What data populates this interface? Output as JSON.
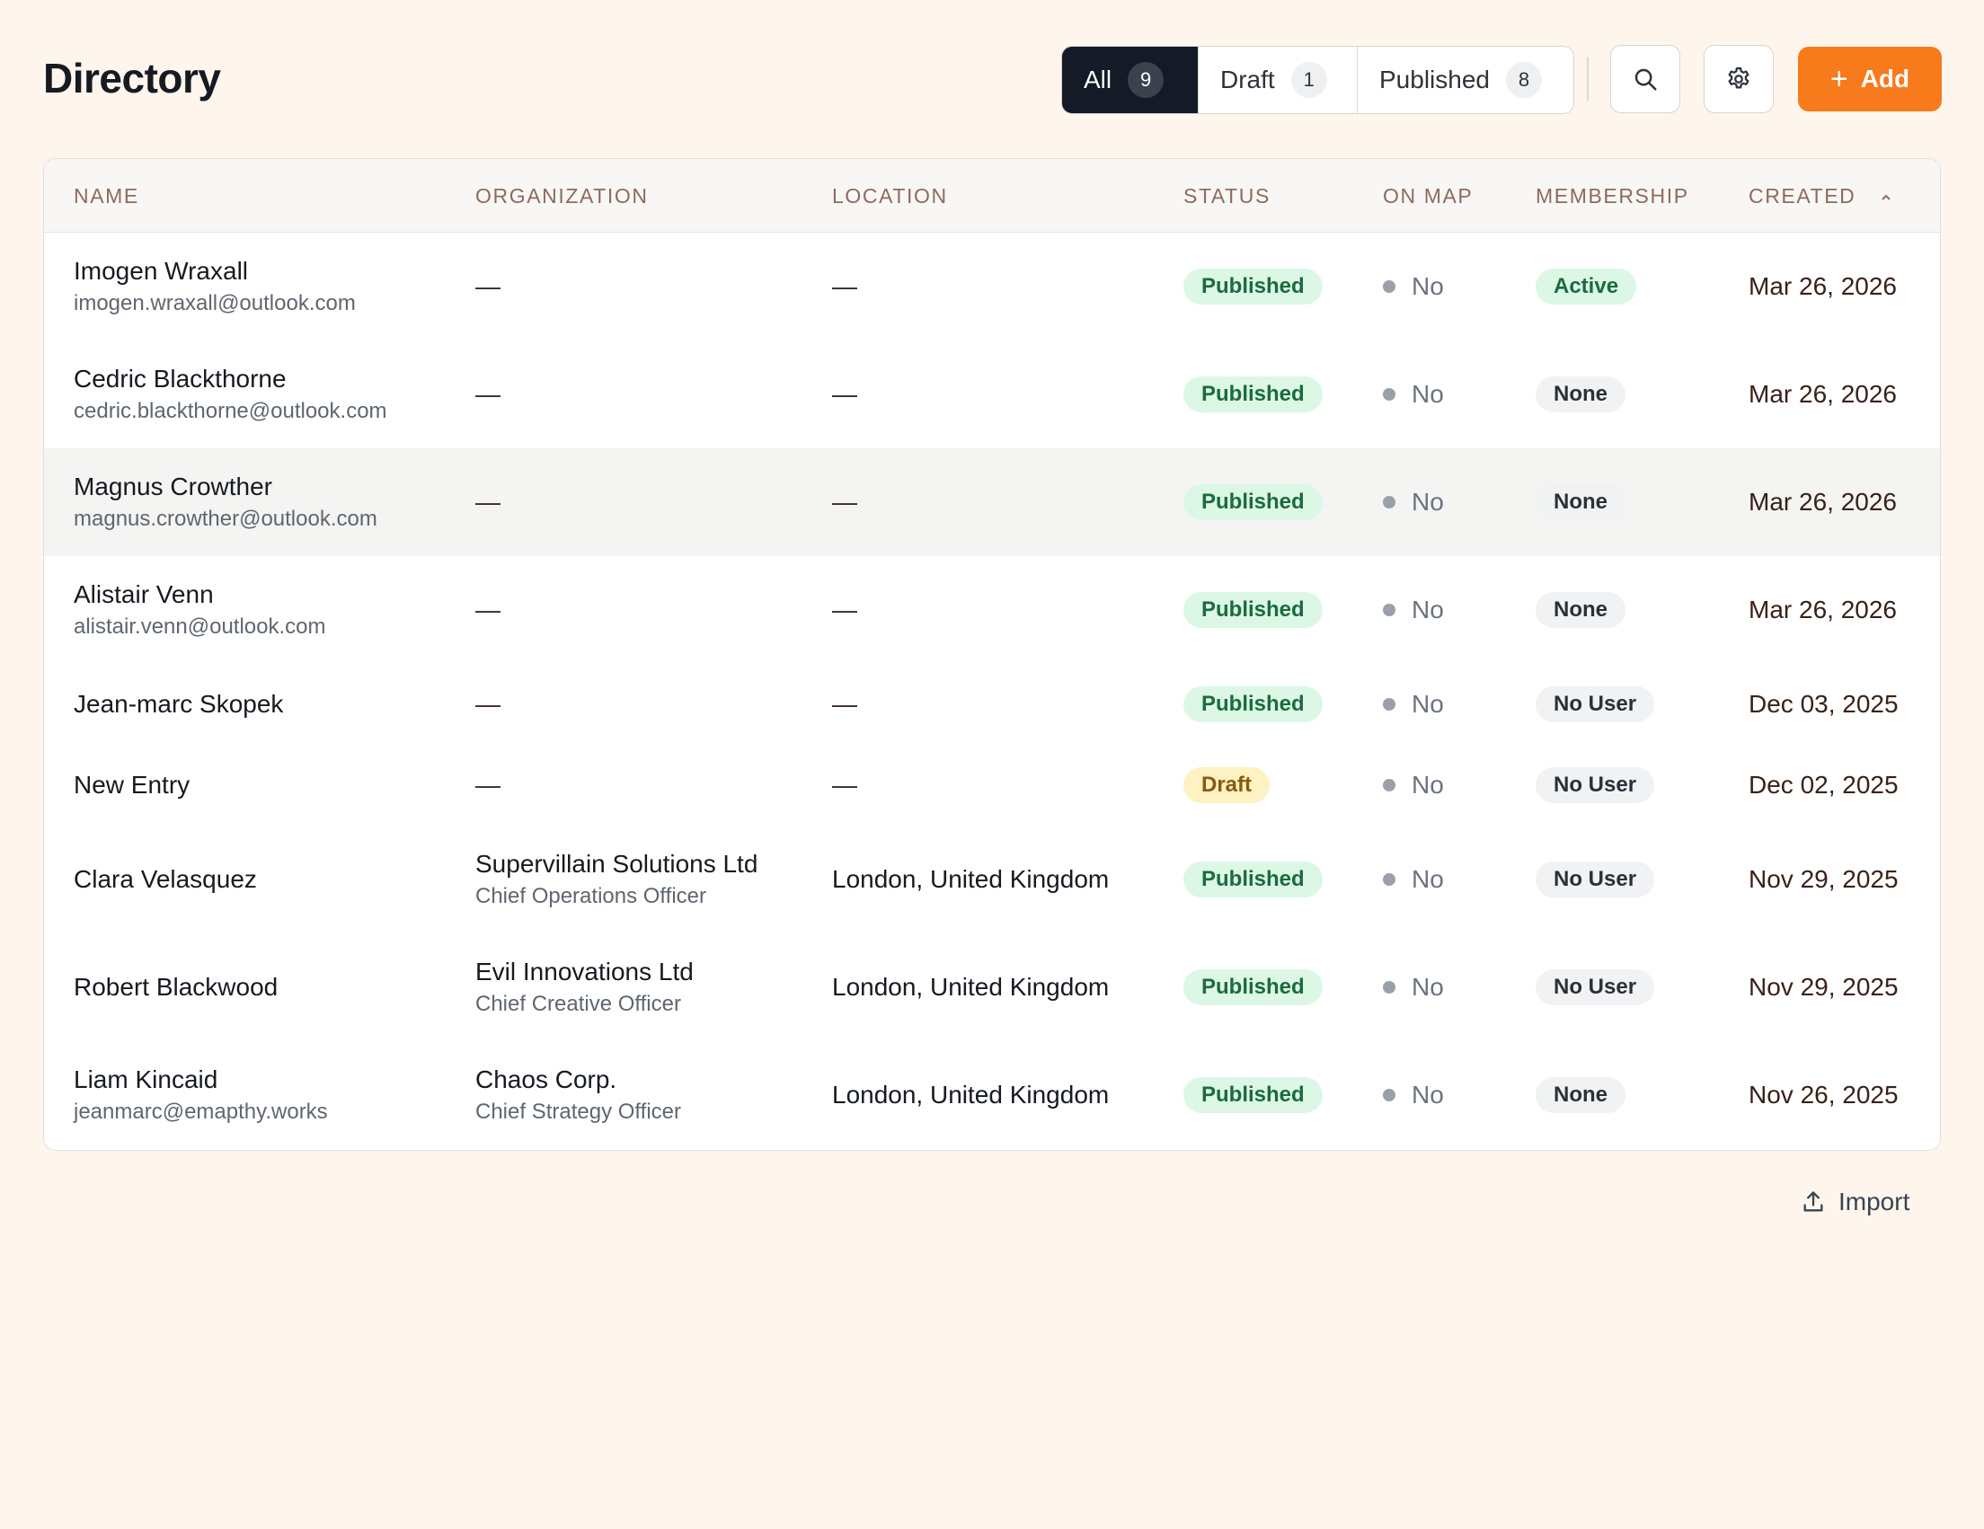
{
  "page": {
    "title": "Directory"
  },
  "filters": [
    {
      "label": "All",
      "count": "9",
      "active": true
    },
    {
      "label": "Draft",
      "count": "1",
      "active": false
    },
    {
      "label": "Published",
      "count": "8",
      "active": false
    }
  ],
  "toolbar": {
    "search_icon": "search-icon",
    "settings_icon": "gear-icon",
    "add_label": "Add"
  },
  "table": {
    "columns": [
      "NAME",
      "ORGANIZATION",
      "LOCATION",
      "STATUS",
      "ON MAP",
      "MEMBERSHIP",
      "CREATED"
    ],
    "sorted_column": "CREATED",
    "rows": [
      {
        "name": "Imogen Wraxall",
        "email": "imogen.wraxall@outlook.com",
        "org": "—",
        "role": "",
        "location": "—",
        "status": "Published",
        "on_map": "No",
        "membership": "Active",
        "created": "Mar 26, 2026"
      },
      {
        "name": "Cedric Blackthorne",
        "email": "cedric.blackthorne@outlook.com",
        "org": "—",
        "role": "",
        "location": "—",
        "status": "Published",
        "on_map": "No",
        "membership": "None",
        "created": "Mar 26, 2026"
      },
      {
        "name": "Magnus Crowther",
        "email": "magnus.crowther@outlook.com",
        "org": "—",
        "role": "",
        "location": "—",
        "status": "Published",
        "on_map": "No",
        "membership": "None",
        "created": "Mar 26, 2026"
      },
      {
        "name": "Alistair Venn",
        "email": "alistair.venn@outlook.com",
        "org": "—",
        "role": "",
        "location": "—",
        "status": "Published",
        "on_map": "No",
        "membership": "None",
        "created": "Mar 26, 2026"
      },
      {
        "name": "Jean-marc Skopek",
        "email": "",
        "org": "—",
        "role": "",
        "location": "—",
        "status": "Published",
        "on_map": "No",
        "membership": "No User",
        "created": "Dec 03, 2025"
      },
      {
        "name": "New Entry",
        "email": "",
        "org": "—",
        "role": "",
        "location": "—",
        "status": "Draft",
        "on_map": "No",
        "membership": "No User",
        "created": "Dec 02, 2025"
      },
      {
        "name": "Clara Velasquez",
        "email": "",
        "org": "Supervillain Solutions Ltd",
        "role": "Chief Operations Officer",
        "location": "London, United Kingdom",
        "status": "Published",
        "on_map": "No",
        "membership": "No User",
        "created": "Nov 29, 2025"
      },
      {
        "name": "Robert Blackwood",
        "email": "",
        "org": "Evil Innovations Ltd",
        "role": "Chief Creative Officer",
        "location": "London, United Kingdom",
        "status": "Published",
        "on_map": "No",
        "membership": "No User",
        "created": "Nov 29, 2025"
      },
      {
        "name": "Liam Kincaid",
        "email": "jeanmarc@emapthy.works",
        "org": "Chaos Corp.",
        "role": "Chief Strategy Officer",
        "location": "London, United Kingdom",
        "status": "Published",
        "on_map": "No",
        "membership": "None",
        "created": "Nov 26, 2025"
      }
    ],
    "hovered_row": 2
  },
  "footer": {
    "import_label": "Import"
  }
}
